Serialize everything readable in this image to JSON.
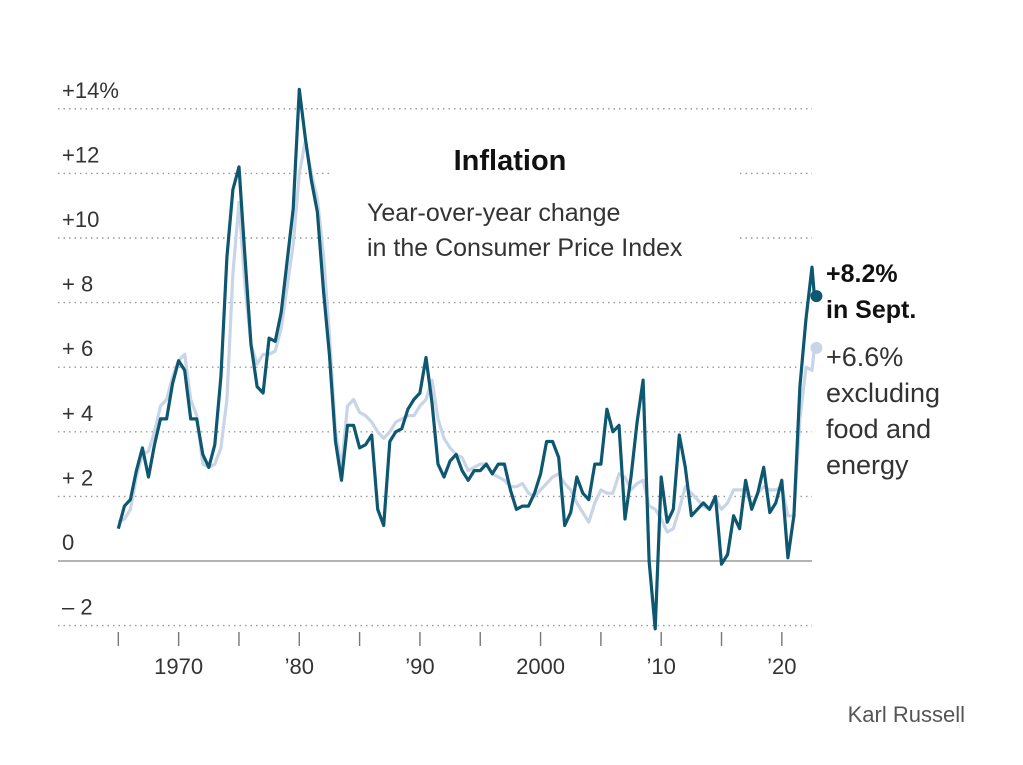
{
  "chart_data": {
    "type": "line",
    "title": "Inflation",
    "subtitle": [
      "Year-over-year change",
      "in the Consumer Price Index"
    ],
    "credit": "Karl Russell",
    "x": [
      1965,
      1965.5,
      1966,
      1966.5,
      1967,
      1967.5,
      1968,
      1968.5,
      1969,
      1969.5,
      1970,
      1970.5,
      1971,
      1971.5,
      1972,
      1972.5,
      1973,
      1973.5,
      1974,
      1974.5,
      1975,
      1975.5,
      1976,
      1976.5,
      1977,
      1977.5,
      1978,
      1978.5,
      1979,
      1979.5,
      1980,
      1980.5,
      1981,
      1981.5,
      1982,
      1982.5,
      1983,
      1983.5,
      1984,
      1984.5,
      1985,
      1985.5,
      1986,
      1986.5,
      1987,
      1987.5,
      1988,
      1988.5,
      1989,
      1989.5,
      1990,
      1990.5,
      1991,
      1991.5,
      1992,
      1992.5,
      1993,
      1993.5,
      1994,
      1994.5,
      1995,
      1995.5,
      1996,
      1996.5,
      1997,
      1997.5,
      1998,
      1998.5,
      1999,
      1999.5,
      2000,
      2000.5,
      2001,
      2001.5,
      2002,
      2002.5,
      2003,
      2003.5,
      2004,
      2004.5,
      2005,
      2005.5,
      2006,
      2006.5,
      2007,
      2007.5,
      2008,
      2008.5,
      2009,
      2009.5,
      2010,
      2010.5,
      2011,
      2011.5,
      2012,
      2012.5,
      2013,
      2013.5,
      2014,
      2014.5,
      2015,
      2015.5,
      2016,
      2016.5,
      2017,
      2017.5,
      2018,
      2018.5,
      2019,
      2019.5,
      2020,
      2020.5,
      2021,
      2021.5,
      2022,
      2022.5,
      2022.7
    ],
    "series": [
      {
        "color": "#c8d5e6",
        "values": [
          1.2,
          1.3,
          1.6,
          2.6,
          3.3,
          3.4,
          4.0,
          4.8,
          5.0,
          5.7,
          6.2,
          6.4,
          5.0,
          4.5,
          3.0,
          2.9,
          3.0,
          3.5,
          5.0,
          8.9,
          11.1,
          8.5,
          6.7,
          6.1,
          6.4,
          6.4,
          6.5,
          7.2,
          8.5,
          9.8,
          12.0,
          13.0,
          12.0,
          11.2,
          9.5,
          7.0,
          4.0,
          2.9,
          4.8,
          5.0,
          4.6,
          4.5,
          4.3,
          4.0,
          3.8,
          4.0,
          4.3,
          4.4,
          4.5,
          4.5,
          4.8,
          5.0,
          5.6,
          4.4,
          3.8,
          3.5,
          3.3,
          3.2,
          2.8,
          2.9,
          3.0,
          3.0,
          2.7,
          2.6,
          2.5,
          2.3,
          2.3,
          2.4,
          2.1,
          2.0,
          2.2,
          2.4,
          2.6,
          2.7,
          2.4,
          2.2,
          1.8,
          1.5,
          1.2,
          1.8,
          2.2,
          2.1,
          2.1,
          2.7,
          2.6,
          2.2,
          2.4,
          2.5,
          1.7,
          1.6,
          1.3,
          0.9,
          1.0,
          1.6,
          2.3,
          2.1,
          1.9,
          1.7,
          1.6,
          1.9,
          1.6,
          1.8,
          2.2,
          2.2,
          2.2,
          1.7,
          2.1,
          2.3,
          2.2,
          2.2,
          2.3,
          1.4,
          1.4,
          4.4,
          6.0,
          5.9,
          6.6
        ]
      },
      {
        "color": "#0e5771",
        "values": [
          1.0,
          1.7,
          1.9,
          2.8,
          3.5,
          2.6,
          3.6,
          4.4,
          4.4,
          5.5,
          6.2,
          5.9,
          4.4,
          4.4,
          3.3,
          2.9,
          3.6,
          5.7,
          9.4,
          11.5,
          12.2,
          9.4,
          6.7,
          5.4,
          5.2,
          6.9,
          6.8,
          7.7,
          9.3,
          10.9,
          14.6,
          13.1,
          11.8,
          10.8,
          8.4,
          6.4,
          3.7,
          2.5,
          4.2,
          4.2,
          3.5,
          3.6,
          3.9,
          1.6,
          1.1,
          3.7,
          4.0,
          4.1,
          4.7,
          5.0,
          5.2,
          6.3,
          4.9,
          3.0,
          2.6,
          3.1,
          3.3,
          2.8,
          2.5,
          2.8,
          2.8,
          3.0,
          2.7,
          3.0,
          3.0,
          2.2,
          1.6,
          1.7,
          1.7,
          2.1,
          2.7,
          3.7,
          3.7,
          3.2,
          1.1,
          1.5,
          2.6,
          2.1,
          1.9,
          3.0,
          3.0,
          4.7,
          4.0,
          4.2,
          1.3,
          2.6,
          4.3,
          5.6,
          0.0,
          -2.1,
          2.6,
          1.2,
          1.6,
          3.9,
          2.9,
          1.4,
          1.6,
          1.8,
          1.6,
          2.0,
          -0.1,
          0.2,
          1.4,
          1.0,
          2.5,
          1.6,
          2.1,
          2.9,
          1.5,
          1.8,
          2.5,
          0.1,
          1.4,
          5.4,
          7.5,
          9.1,
          8.2
        ]
      }
    ],
    "annotations": [
      {
        "series": 1,
        "lines": [
          "+8.2%",
          "in Sept."
        ]
      },
      {
        "series": 0,
        "lines": [
          "+6.6%",
          "excluding",
          "food and",
          "energy"
        ]
      }
    ],
    "xlim": [
      1960,
      2022.5
    ],
    "xticks": [
      {
        "value": 1970,
        "label": "1970"
      },
      {
        "value": 1980,
        "label": "’80"
      },
      {
        "value": 1990,
        "label": "’90"
      },
      {
        "value": 2000,
        "label": "2000"
      },
      {
        "value": 2010,
        "label": "’10"
      },
      {
        "value": 2020,
        "label": "’20"
      }
    ],
    "xminorticks": [
      1965,
      1975,
      1985,
      1995,
      2005,
      2015
    ],
    "ylim": [
      -2,
      14
    ],
    "yticks": [
      {
        "value": -2,
        "label": "– 2"
      },
      0,
      {
        "value": 2,
        "label": "+ 2"
      },
      {
        "value": 4,
        "label": "+ 4"
      },
      {
        "value": 6,
        "label": "+ 6"
      },
      {
        "value": 8,
        "label": "+ 8"
      },
      {
        "value": 10,
        "label": "+10"
      },
      {
        "value": 12,
        "label": "+12"
      },
      {
        "value": 14,
        "label": "+14%"
      }
    ],
    "grid": true
  }
}
